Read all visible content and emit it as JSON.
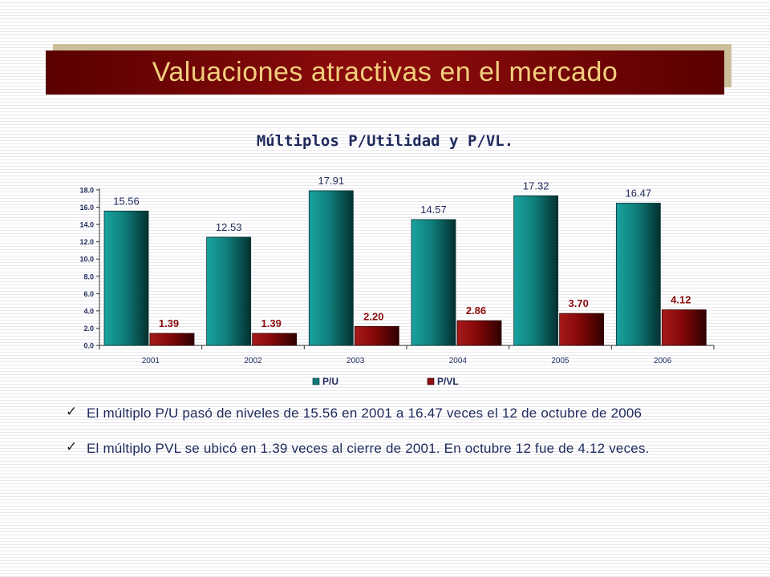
{
  "slide": {
    "title": "Valuaciones atractivas en el mercado"
  },
  "chart_data": {
    "type": "bar",
    "title": "Múltiplos P/Utilidad y P/VL.",
    "categories": [
      "2001",
      "2002",
      "2003",
      "2004",
      "2005",
      "2006"
    ],
    "series": [
      {
        "name": "P/U",
        "values": [
          15.56,
          12.53,
          17.91,
          14.57,
          17.32,
          16.47
        ],
        "labels": [
          "15.56",
          "12.53",
          "17.91",
          "14.57",
          "17.32",
          "16.47"
        ],
        "color": "#0f7a78"
      },
      {
        "name": "P/VL",
        "values": [
          1.39,
          1.39,
          2.2,
          2.86,
          3.7,
          4.12
        ],
        "labels": [
          "1.39",
          "1.39",
          "2.20",
          "2.86",
          "3.70",
          "4.12"
        ],
        "color": "#8a0c0c"
      }
    ],
    "ylim": [
      0,
      18
    ],
    "yticks": [
      "0.0",
      "2.0",
      "4.0",
      "6.0",
      "8.0",
      "10.0",
      "12.0",
      "14.0",
      "16.0",
      "18.0"
    ],
    "xlabel": "",
    "ylabel": "",
    "grid": false,
    "legend": "bottom"
  },
  "bullets": [
    {
      "icon": "check-icon",
      "text": "El múltiplo P/U pasó de niveles de 15.56 en 2001 a 16.47 veces el 12 de octubre de 2006"
    },
    {
      "icon": "check-icon",
      "text": "El múltiplo PVL se ubicó en 1.39 veces al cierre de 2001. En octubre 12 fue de 4.12 veces."
    }
  ]
}
